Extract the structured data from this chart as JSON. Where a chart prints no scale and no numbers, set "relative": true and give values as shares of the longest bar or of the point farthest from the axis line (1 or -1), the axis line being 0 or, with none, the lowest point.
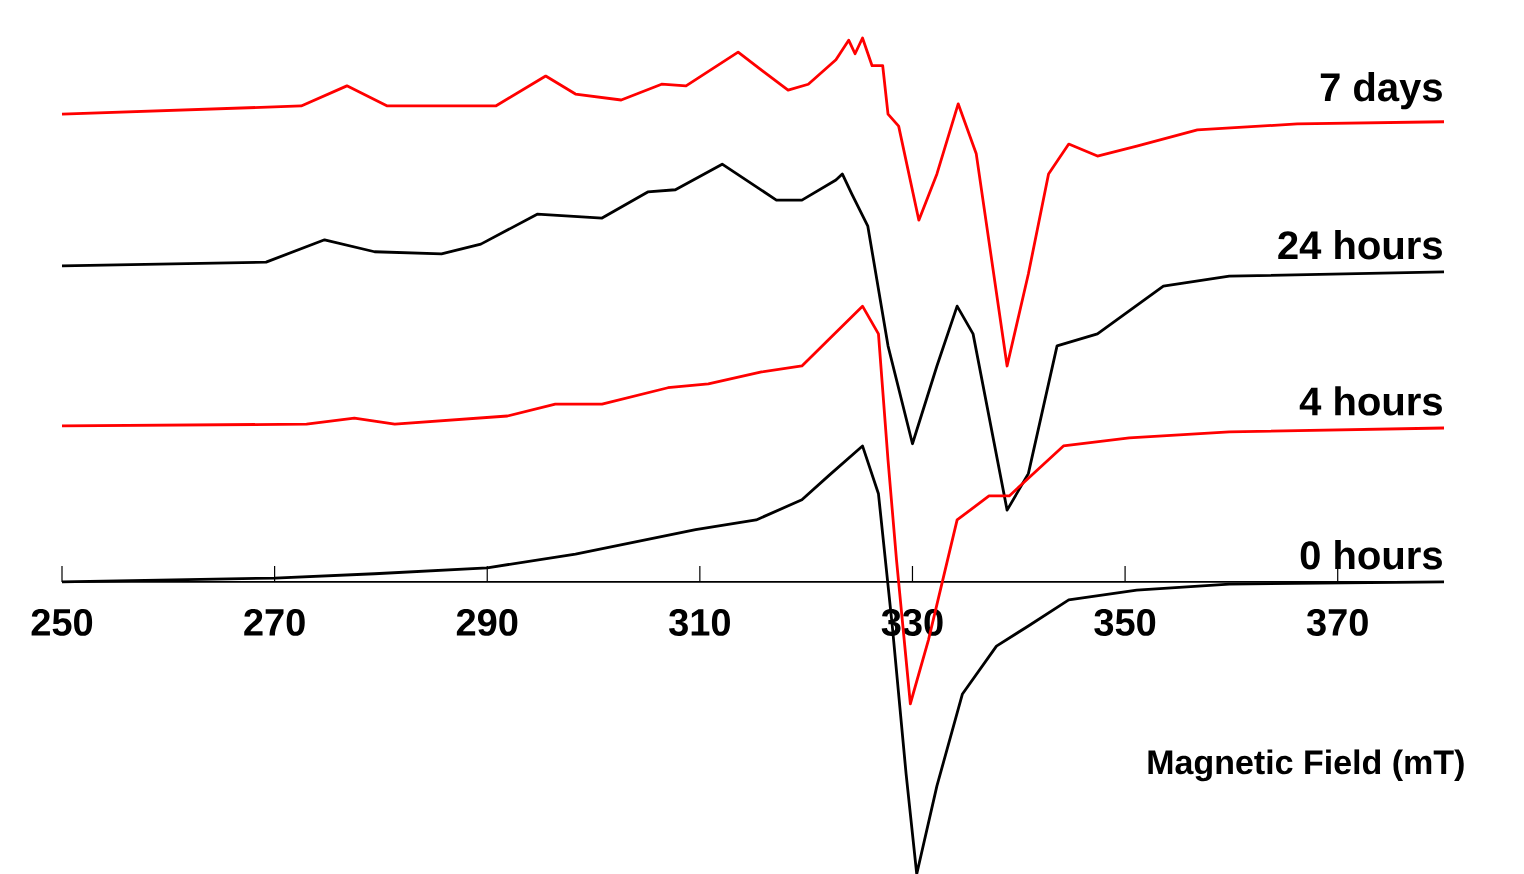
{
  "chart_data": {
    "type": "line",
    "relative": true,
    "xlabel": "Magnetic Field (mT)",
    "xlim": [
      250,
      380
    ],
    "xticks": [
      250,
      270,
      290,
      310,
      330,
      350,
      370
    ],
    "grid": false,
    "legend": false,
    "marker": "none",
    "series": [
      {
        "name": "7 days",
        "color": "#ff0000",
        "x": [
          250,
          272.5,
          276.8,
          280.6,
          290.8,
          295.5,
          298.3,
          302.6,
          306.4,
          308.7,
          313.6,
          315.8,
          318.3,
          320.2,
          322.8,
          324,
          324.6,
          325.3,
          326.2,
          327.2,
          327.7,
          328.7,
          330.6,
          332.3,
          334.3,
          336,
          338.9,
          340.9,
          342.8,
          344.7,
          347.4,
          351.1,
          356.8,
          366.2,
          380
        ],
        "values": [
          0.86,
          0.875,
          0.912,
          0.875,
          0.875,
          0.93,
          0.897,
          0.886,
          0.915,
          0.912,
          0.974,
          0.941,
          0.904,
          0.915,
          0.96,
          0.996,
          0.971,
          1.0,
          0.949,
          0.949,
          0.86,
          0.838,
          0.665,
          0.75,
          0.879,
          0.787,
          0.397,
          0.566,
          0.75,
          0.805,
          0.783,
          0.801,
          0.831,
          0.842,
          0.846
        ]
      },
      {
        "name": "24 hours",
        "color": "#000000",
        "x": [
          250,
          269.2,
          274.7,
          279.4,
          285.7,
          289.4,
          294.7,
          300.8,
          305.1,
          307.7,
          312.1,
          317.2,
          319.6,
          322.8,
          323.4,
          324.3,
          325.8,
          327.7,
          330,
          332.3,
          334.2,
          335.7,
          338.9,
          340.9,
          343.6,
          347.4,
          353.6,
          359.8,
          380
        ],
        "values": [
          0.581,
          0.588,
          0.629,
          0.607,
          0.603,
          0.621,
          0.676,
          0.669,
          0.717,
          0.721,
          0.768,
          0.702,
          0.702,
          0.739,
          0.75,
          0.713,
          0.654,
          0.434,
          0.254,
          0.397,
          0.507,
          0.456,
          0.132,
          0.199,
          0.434,
          0.456,
          0.544,
          0.562,
          0.57
        ]
      },
      {
        "name": "4 hours",
        "color": "#ff0000",
        "x": [
          250,
          273,
          277.5,
          281.3,
          291.9,
          296.4,
          300.8,
          307,
          310.8,
          315.8,
          319.6,
          322.1,
          325.3,
          326.8,
          327.7,
          328.5,
          329.8,
          331.5,
          334.2,
          337.2,
          339.1,
          344.2,
          350.4,
          359.8,
          380
        ],
        "values": [
          0.287,
          0.29,
          0.301,
          0.29,
          0.305,
          0.327,
          0.327,
          0.357,
          0.364,
          0.386,
          0.397,
          0.445,
          0.507,
          0.456,
          0.224,
          0.04,
          -0.224,
          -0.107,
          0.114,
          0.158,
          0.158,
          0.25,
          0.265,
          0.276,
          0.283
        ]
      },
      {
        "name": "0 hours",
        "color": "#000000",
        "x": [
          250,
          270,
          279.4,
          290,
          298.3,
          309.6,
          315.3,
          319.6,
          322.1,
          325.3,
          326.8,
          328.1,
          329.4,
          330.4,
          332.3,
          334.7,
          337.9,
          340.9,
          344.7,
          351.1,
          359.8,
          380
        ],
        "values": [
          0.0,
          0.007,
          0.015,
          0.026,
          0.051,
          0.096,
          0.114,
          0.151,
          0.195,
          0.25,
          0.162,
          -0.081,
          -0.353,
          -0.537,
          -0.375,
          -0.206,
          -0.118,
          -0.081,
          -0.033,
          -0.015,
          -0.004,
          0.0
        ]
      }
    ]
  }
}
